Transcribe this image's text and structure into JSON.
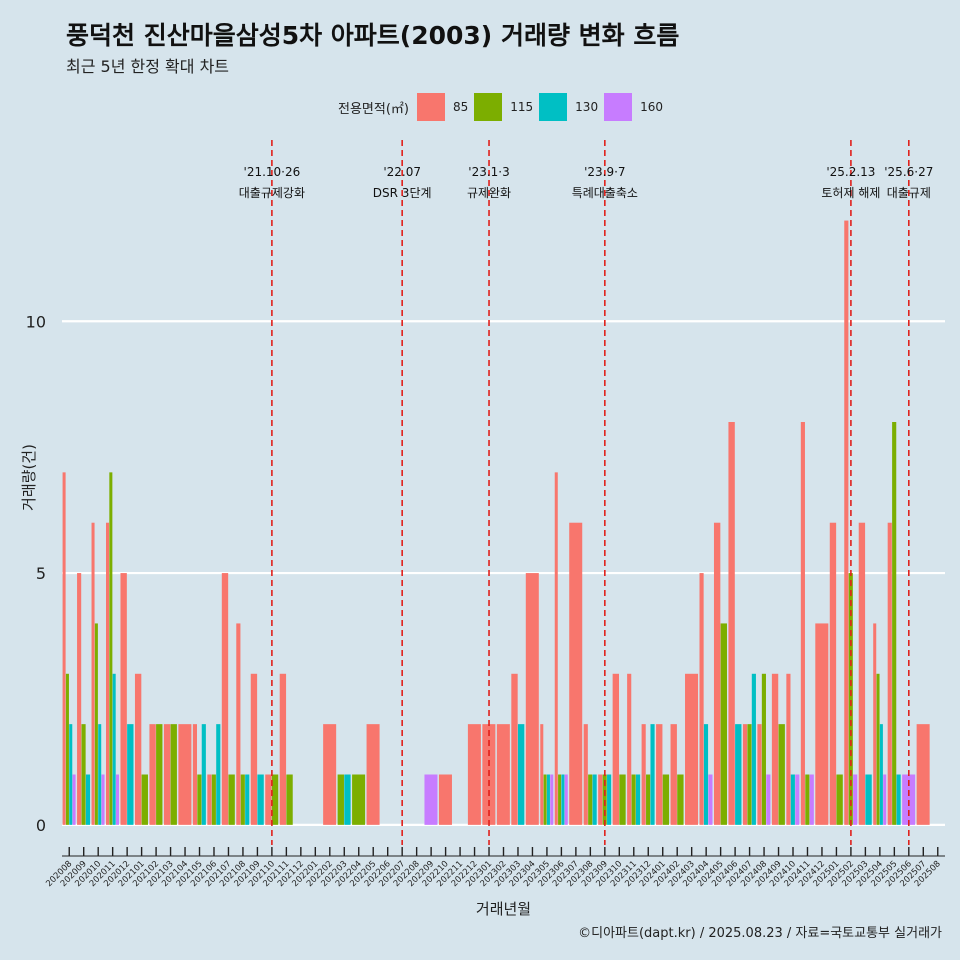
{
  "title": "풍덕천 진산마을삼성5차 아파트(2003) 거래량 변화 흐름",
  "subtitle": "최근 5년 한정 확대 차트",
  "caption": "©디아파트(dapt.kr) / 2025.08.23 / 자료=국토교통부 실거래가",
  "legend": {
    "title": "전용면적(㎡)",
    "items": [
      {
        "label": "85",
        "color": "#f8766d"
      },
      {
        "label": "115",
        "color": "#7cae00"
      },
      {
        "label": "130",
        "color": "#00bfc4"
      },
      {
        "label": "160",
        "color": "#c77cff"
      }
    ]
  },
  "chart_data": {
    "type": "bar",
    "xlabel": "거래년월",
    "ylabel": "거래량(건)",
    "yticks": [
      0,
      5,
      10
    ],
    "ylim": [
      -0.4,
      13.6
    ],
    "categories": [
      "202008",
      "202009",
      "202010",
      "202011",
      "202012",
      "202101",
      "202102",
      "202103",
      "202104",
      "202105",
      "202106",
      "202107",
      "202108",
      "202109",
      "202110",
      "202111",
      "202112",
      "202201",
      "202202",
      "202203",
      "202204",
      "202205",
      "202206",
      "202207",
      "202208",
      "202209",
      "202210",
      "202211",
      "202212",
      "202301",
      "202302",
      "202303",
      "202304",
      "202305",
      "202306",
      "202307",
      "202308",
      "202309",
      "202310",
      "202311",
      "202312",
      "202401",
      "202402",
      "202403",
      "202404",
      "202405",
      "202406",
      "202407",
      "202408",
      "202409",
      "202410",
      "202411",
      "202412",
      "202501",
      "202502",
      "202503",
      "202504",
      "202505",
      "202506",
      "202507",
      "202508"
    ],
    "series": [
      {
        "name": "85",
        "color": "#f8766d",
        "values": [
          7,
          5,
          6,
          6,
          5,
          3,
          2,
          2,
          2,
          2,
          1,
          5,
          4,
          3,
          1,
          3,
          0,
          0,
          2,
          0,
          0,
          2,
          0,
          0,
          0,
          0,
          1,
          0,
          2,
          2,
          2,
          3,
          5,
          2,
          7,
          6,
          2,
          1,
          3,
          3,
          2,
          2,
          2,
          3,
          5,
          6,
          8,
          2,
          2,
          3,
          3,
          8,
          4,
          6,
          12,
          6,
          4,
          6,
          0,
          2,
          0
        ]
      },
      {
        "name": "115",
        "color": "#7cae00",
        "values": [
          3,
          2,
          4,
          7,
          0,
          1,
          2,
          2,
          0,
          1,
          1,
          1,
          1,
          0,
          1,
          1,
          0,
          0,
          0,
          1,
          1,
          0,
          0,
          0,
          0,
          0,
          0,
          0,
          0,
          0,
          0,
          0,
          0,
          1,
          1,
          0,
          1,
          1,
          1,
          1,
          1,
          1,
          1,
          0,
          0,
          4,
          0,
          2,
          3,
          2,
          0,
          1,
          0,
          1,
          5,
          0,
          3,
          8,
          0,
          0,
          0
        ]
      },
      {
        "name": "130",
        "color": "#00bfc4",
        "values": [
          2,
          1,
          2,
          3,
          2,
          0,
          0,
          0,
          0,
          2,
          2,
          0,
          1,
          1,
          0,
          0,
          0,
          0,
          0,
          1,
          0,
          0,
          0,
          0,
          0,
          0,
          0,
          0,
          0,
          0,
          0,
          2,
          0,
          1,
          1,
          0,
          1,
          1,
          0,
          1,
          2,
          0,
          0,
          0,
          2,
          0,
          2,
          3,
          0,
          0,
          1,
          0,
          0,
          0,
          0,
          1,
          2,
          1,
          0,
          0,
          0
        ]
      },
      {
        "name": "160",
        "color": "#c77cff",
        "values": [
          1,
          0,
          1,
          1,
          0,
          0,
          0,
          0,
          0,
          0,
          0,
          0,
          0,
          0,
          0,
          0,
          0,
          0,
          0,
          0,
          0,
          0,
          0,
          0,
          0,
          1,
          0,
          0,
          0,
          0,
          0,
          0,
          0,
          1,
          1,
          0,
          0,
          0,
          0,
          0,
          0,
          0,
          0,
          0,
          1,
          0,
          0,
          0,
          1,
          0,
          1,
          1,
          0,
          0,
          1,
          0,
          1,
          0,
          1,
          0,
          0
        ]
      }
    ],
    "events": [
      {
        "category": "202110",
        "date": "'21.10·26",
        "label": "대출규제강화"
      },
      {
        "category": "202207",
        "date": "'22.07",
        "label": "DSR 3단계"
      },
      {
        "category": "202301",
        "date": "'23.1·3",
        "label": "규제완화"
      },
      {
        "category": "202309",
        "date": "'23.9·7",
        "label": "특례대출축소"
      },
      {
        "category": "202502",
        "date": "'25.2.13",
        "label": "토허제 해제"
      },
      {
        "category": "202506",
        "date": "'25.6·27",
        "label": "대출규제"
      }
    ]
  }
}
